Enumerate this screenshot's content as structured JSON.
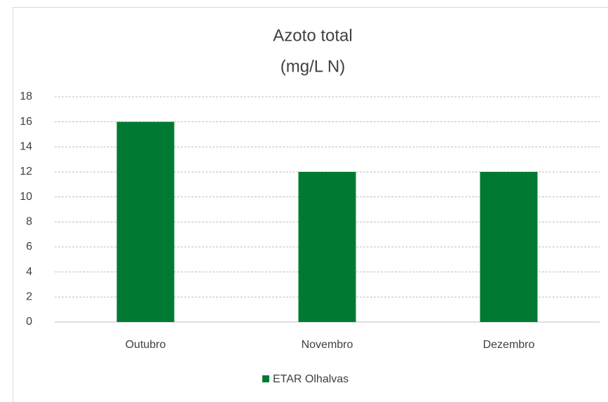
{
  "chart_data": {
    "type": "bar",
    "title": "Azoto total",
    "subtitle": "(mg/L N)",
    "categories": [
      "Outubro",
      "Novembro",
      "Dezembro"
    ],
    "series": [
      {
        "name": "ETAR Olhalvas",
        "color": "#007a33",
        "values": [
          16,
          12,
          12
        ]
      }
    ],
    "ylim": [
      0,
      18
    ],
    "yticks": [
      0,
      2,
      4,
      6,
      8,
      10,
      12,
      14,
      16,
      18
    ],
    "grid": true,
    "legend": "bottom"
  }
}
